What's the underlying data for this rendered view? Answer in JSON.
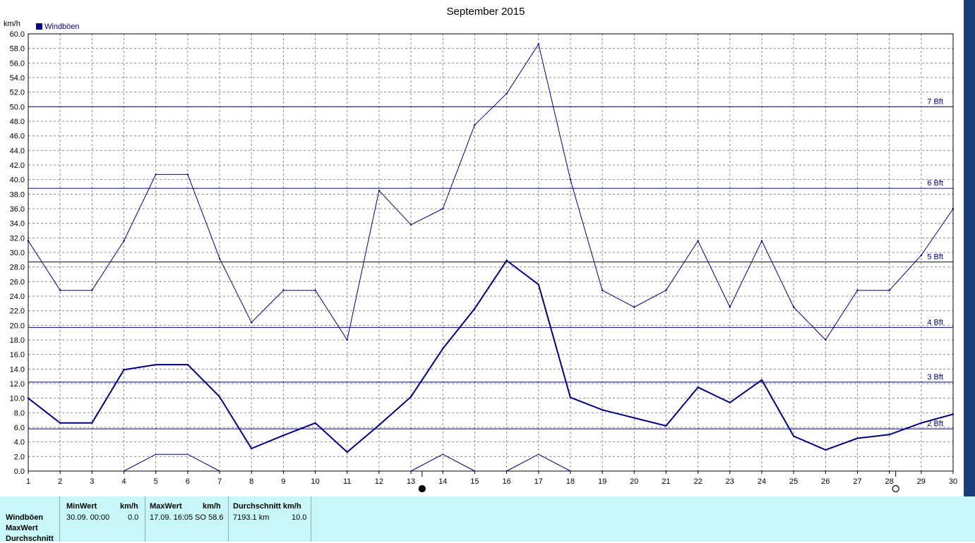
{
  "chart_data": {
    "type": "line",
    "title": "September 2015",
    "ylabel": "km/h",
    "legend": {
      "label": "Windböen",
      "color": "#00007f",
      "position": "top-left"
    },
    "ylim": [
      0,
      60
    ],
    "yticks": [
      "0.0",
      "2.0",
      "4.0",
      "6.0",
      "8.0",
      "10.0",
      "12.0",
      "14.0",
      "16.0",
      "18.0",
      "20.0",
      "22.0",
      "24.0",
      "26.0",
      "28.0",
      "30.0",
      "32.0",
      "34.0",
      "36.0",
      "38.0",
      "40.0",
      "42.0",
      "44.0",
      "46.0",
      "48.0",
      "50.0",
      "52.0",
      "54.0",
      "56.0",
      "58.0",
      "60.0"
    ],
    "x": [
      1,
      2,
      3,
      4,
      5,
      6,
      7,
      8,
      9,
      10,
      11,
      12,
      13,
      14,
      15,
      16,
      17,
      18,
      19,
      20,
      21,
      22,
      23,
      24,
      25,
      26,
      27,
      28,
      29,
      30
    ],
    "grid": true,
    "series": [
      {
        "role": "max",
        "color": "#00007f",
        "values": [
          31.6,
          24.8,
          24.8,
          31.6,
          40.7,
          40.7,
          29.2,
          20.4,
          24.8,
          24.8,
          18.0,
          38.5,
          33.8,
          36.0,
          47.5,
          51.8,
          58.6,
          40.0,
          24.8,
          22.5,
          24.8,
          31.6,
          22.5,
          31.6,
          22.5,
          18.0,
          24.8,
          24.8,
          29.6,
          36.0
        ]
      },
      {
        "role": "average",
        "color": "#00007f",
        "values": [
          10.0,
          6.6,
          6.6,
          13.9,
          14.6,
          14.6,
          10.2,
          3.1,
          4.9,
          6.6,
          2.6,
          6.3,
          10.2,
          16.8,
          22.3,
          28.9,
          25.6,
          10.1,
          8.4,
          7.3,
          6.2,
          11.5,
          9.4,
          12.5,
          4.8,
          2.9,
          4.5,
          5.0,
          6.6,
          7.8
        ]
      },
      {
        "role": "min",
        "color": "#00007f",
        "segments": [
          [
            [
              4,
              0.0
            ],
            [
              5,
              2.3
            ],
            [
              6,
              2.3
            ],
            [
              7,
              0.0
            ]
          ],
          [
            [
              13,
              0.0
            ],
            [
              14,
              2.3
            ],
            [
              15,
              0.0
            ]
          ],
          [
            [
              16,
              0.0
            ],
            [
              17,
              2.3
            ],
            [
              18,
              0.0
            ]
          ]
        ]
      }
    ],
    "reference_lines": [
      {
        "label": "2 Bft",
        "value": 5.8
      },
      {
        "label": "3 Bft",
        "value": 12.2
      },
      {
        "label": "4 Bft",
        "value": 19.7
      },
      {
        "label": "5 Bft",
        "value": 28.7
      },
      {
        "label": "6 Bft",
        "value": 38.8
      },
      {
        "label": "7 Bft",
        "value": 50.0
      }
    ],
    "moon_markers": [
      {
        "day": 13.35,
        "phase": "new"
      },
      {
        "day": 28.2,
        "phase": "full"
      }
    ]
  },
  "stats": {
    "row_labels": [
      "Windböen",
      "MaxWert",
      "Durchschnitt"
    ],
    "min": {
      "header": "MinWert",
      "unit": "km/h",
      "date": "30.09.  00:00",
      "value": "0.0"
    },
    "max": {
      "header": "MaxWert",
      "unit": "km/h",
      "date": "17.09.  16:05",
      "dir_value": "SO 58.6"
    },
    "avg": {
      "header": "Durchschnitt km/h",
      "distance": "7193.1 km",
      "value": "10.0"
    }
  }
}
